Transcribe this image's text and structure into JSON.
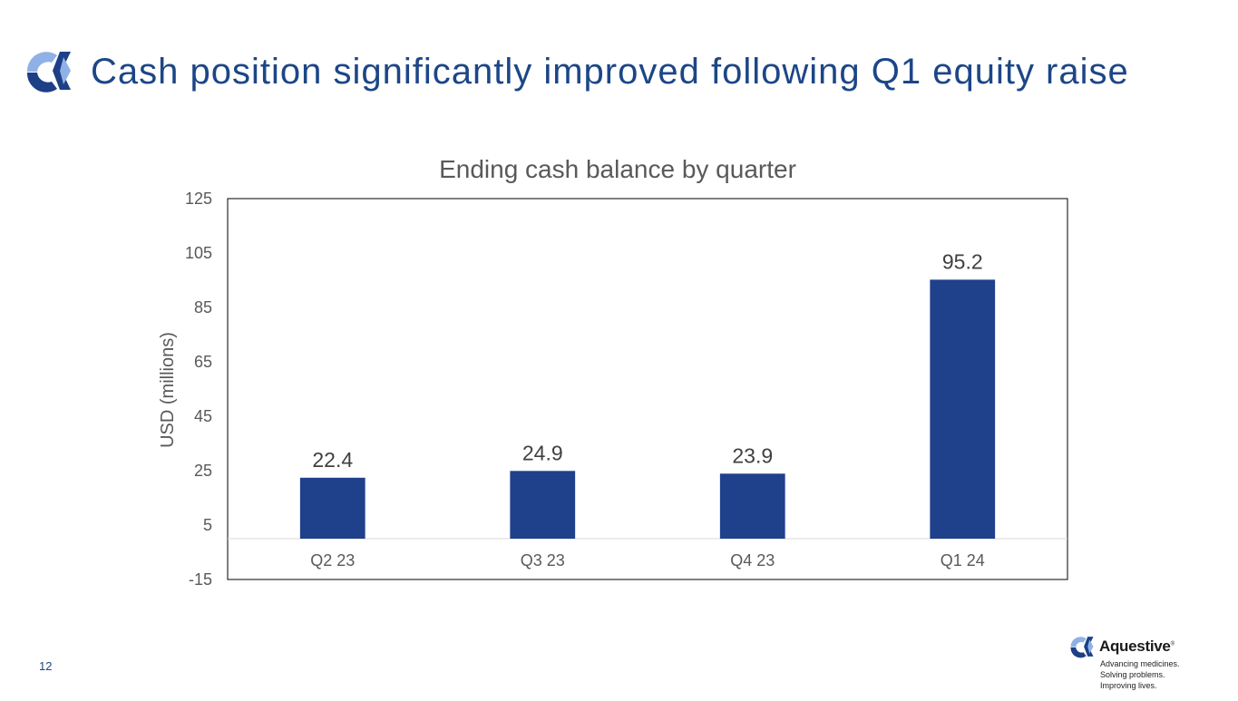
{
  "slide": {
    "title": "Cash position significantly improved following Q1 equity raise",
    "page_number": "12"
  },
  "brand": {
    "name": "Aquestive",
    "trademark": "®",
    "tagline": [
      "Advancing medicines.",
      "Solving problems.",
      "Improving lives."
    ]
  },
  "colors": {
    "title": "#1c4687",
    "bar": "#1f408b",
    "logo_dark": "#1c3f86",
    "logo_light": "#8fb1e6"
  },
  "chart_data": {
    "type": "bar",
    "title": "Ending cash balance by quarter",
    "xlabel": "",
    "ylabel": "USD (millions)",
    "categories": [
      "Q2 23",
      "Q3 23",
      "Q4 23",
      "Q1 24"
    ],
    "values": [
      22.4,
      24.9,
      23.9,
      95.2
    ],
    "value_labels": [
      "22.4",
      "24.9",
      "23.9",
      "95.2"
    ],
    "ylim": [
      -15,
      125
    ],
    "yticks": [
      -15,
      5,
      25,
      45,
      65,
      85,
      105,
      125
    ],
    "grid": false,
    "legend": "none"
  }
}
